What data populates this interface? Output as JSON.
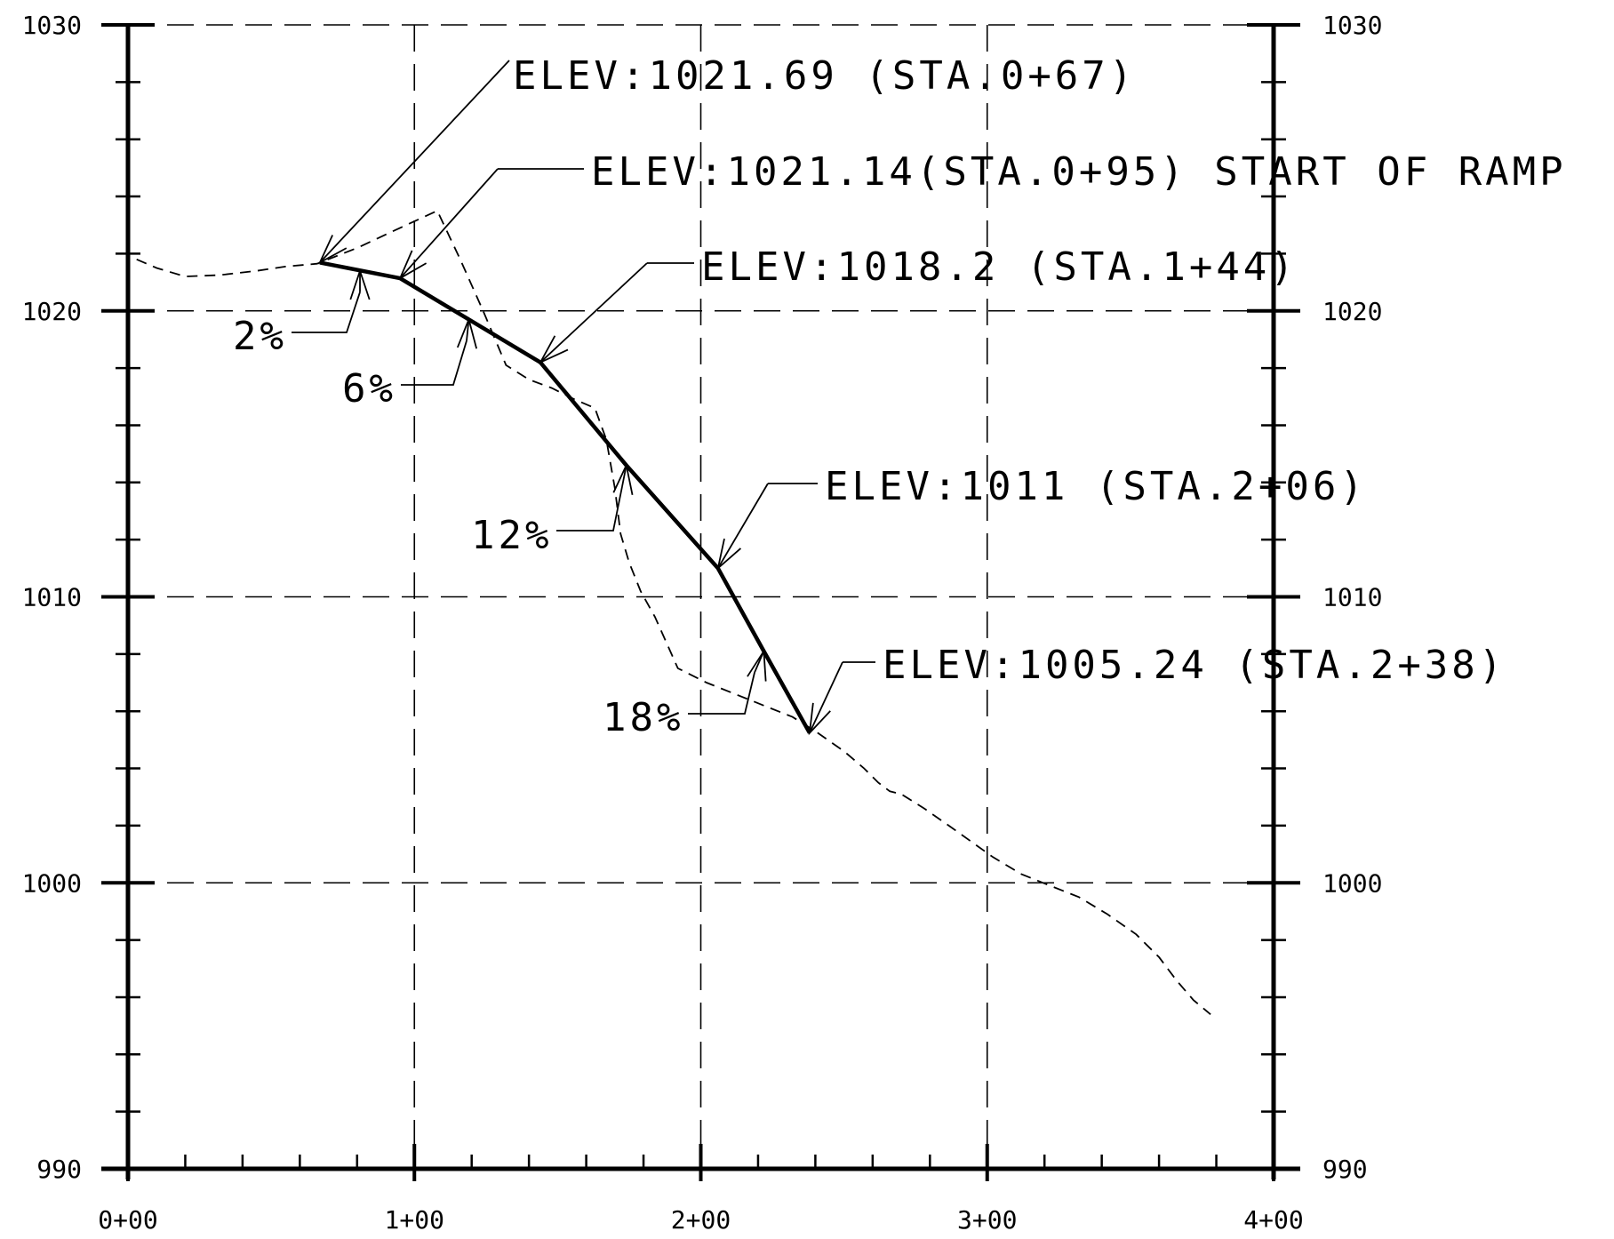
{
  "chart_data": {
    "type": "line",
    "title": "",
    "xlabel": "",
    "ylabel": "",
    "xlim": [
      0,
      400
    ],
    "ylim": [
      990,
      1030
    ],
    "grid": true,
    "x_ticks": [
      {
        "value": 0,
        "label": "0+00"
      },
      {
        "value": 100,
        "label": "1+00"
      },
      {
        "value": 200,
        "label": "2+00"
      },
      {
        "value": 300,
        "label": "3+00"
      },
      {
        "value": 400,
        "label": "4+00"
      }
    ],
    "y_ticks": [
      {
        "value": 990,
        "label": "990"
      },
      {
        "value": 1000,
        "label": "1000"
      },
      {
        "value": 1010,
        "label": "1010"
      },
      {
        "value": 1020,
        "label": "1020"
      },
      {
        "value": 1030,
        "label": "1030"
      }
    ],
    "series": [
      {
        "style": "solid",
        "x": [
          67,
          95,
          144,
          174,
          206,
          222,
          238
        ],
        "y": [
          1021.69,
          1021.14,
          1018.2,
          1014.6,
          1011,
          1008.1,
          1005.24
        ]
      },
      {
        "style": "dashed",
        "x": [
          3,
          10,
          20,
          32,
          45,
          55,
          66,
          80,
          95,
          108,
          116,
          124,
          132,
          140,
          148,
          156,
          163,
          167,
          170,
          172,
          175,
          179,
          184,
          192,
          202,
          212,
          222,
          232,
          240,
          250,
          257,
          262,
          266,
          270,
          278,
          288,
          302,
          312,
          322,
          332,
          342,
          352,
          360,
          366,
          372,
          378
        ],
        "y": [
          1021.8,
          1021.5,
          1021.2,
          1021.25,
          1021.4,
          1021.55,
          1021.65,
          1022.2,
          1022.9,
          1023.5,
          1021.8,
          1020.0,
          1018.1,
          1017.6,
          1017.3,
          1016.9,
          1016.6,
          1015.5,
          1013.8,
          1012.2,
          1011.2,
          1010.2,
          1009.3,
          1007.5,
          1007.0,
          1006.6,
          1006.2,
          1005.8,
          1005.3,
          1004.6,
          1004.0,
          1003.5,
          1003.2,
          1003.1,
          1002.6,
          1001.9,
          1000.9,
          1000.3,
          999.9,
          999.5,
          998.9,
          998.2,
          997.4,
          996.6,
          995.9,
          995.4
        ]
      }
    ],
    "annotations": [
      {
        "text": "ELEV:1021.69 (STA.0+67)",
        "x": 67,
        "y": 1021.69
      },
      {
        "text": "ELEV:1021.14(STA.0+95) START OF RAMP",
        "x": 95,
        "y": 1021.14
      },
      {
        "text": "ELEV:1018.2  (STA.1+44)",
        "x": 144,
        "y": 1018.2
      },
      {
        "text": "ELEV:1011  (STA.2+06)",
        "x": 206,
        "y": 1011
      },
      {
        "text": "ELEV:1005.24 (STA.2+38)",
        "x": 238,
        "y": 1005.24
      }
    ],
    "slope_labels": [
      {
        "text": "2%",
        "x": 81,
        "y": 1021.4
      },
      {
        "text": "6%",
        "x": 119,
        "y": 1019.7
      },
      {
        "text": "12%",
        "x": 174,
        "y": 1014.6
      },
      {
        "text": "18%",
        "x": 222,
        "y": 1008.1
      }
    ]
  }
}
